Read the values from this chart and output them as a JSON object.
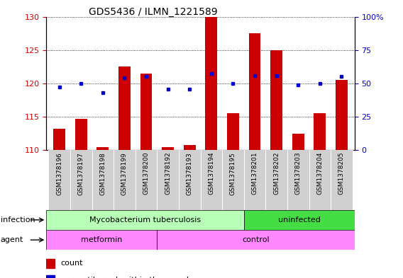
{
  "title": "GDS5436 / ILMN_1221589",
  "samples": [
    "GSM1378196",
    "GSM1378197",
    "GSM1378198",
    "GSM1378199",
    "GSM1378200",
    "GSM1378192",
    "GSM1378193",
    "GSM1378194",
    "GSM1378195",
    "GSM1378201",
    "GSM1378202",
    "GSM1378203",
    "GSM1378204",
    "GSM1378205"
  ],
  "bar_values": [
    113.2,
    114.7,
    110.4,
    122.5,
    121.5,
    110.5,
    110.8,
    130.0,
    115.5,
    127.5,
    125.0,
    112.5,
    115.5,
    120.5
  ],
  "blue_values_left": [
    119.5,
    120.0,
    118.6,
    120.8,
    121.0,
    119.1,
    119.1,
    121.5,
    120.0,
    121.2,
    121.2,
    119.8,
    120.0,
    121.0
  ],
  "ylim_left": [
    110,
    130
  ],
  "ylim_right": [
    0,
    100
  ],
  "yticks_left": [
    110,
    115,
    120,
    125,
    130
  ],
  "yticks_right": [
    0,
    25,
    50,
    75,
    100
  ],
  "ytick_labels_right": [
    "0",
    "25",
    "50",
    "75",
    "100%"
  ],
  "bar_color": "#cc0000",
  "blue_color": "#0000cc",
  "infection_green_light": "#b8ffb8",
  "infection_green_dark": "#44dd44",
  "agent_pink": "#ff88ff",
  "background_color": "#ffffff",
  "tick_label_color_left": "#cc0000",
  "tick_label_color_right": "#0000cc",
  "infection_labels": [
    "Mycobacterium tuberculosis",
    "uninfected"
  ],
  "agent_labels": [
    "metformin",
    "control"
  ],
  "xticklabel_bg": "#d0d0d0",
  "n_metformin": 5,
  "n_infection_tb": 9
}
